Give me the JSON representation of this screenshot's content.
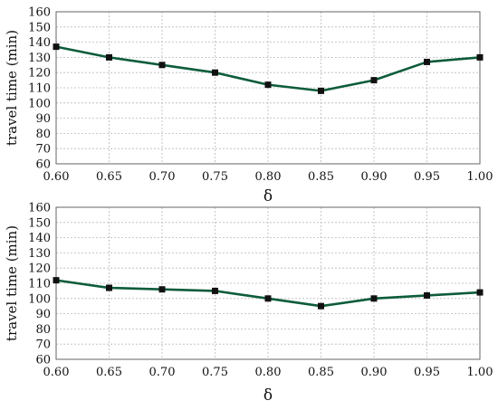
{
  "chart_data": [
    {
      "type": "line",
      "xlabel": "δ",
      "ylabel": "travel time (min)",
      "x": [
        "0.60",
        "0.65",
        "0.70",
        "0.75",
        "0.80",
        "0.85",
        "0.90",
        "0.95",
        "1.00"
      ],
      "yticks": [
        "60",
        "70",
        "80",
        "90",
        "100",
        "110",
        "120",
        "130",
        "140",
        "150",
        "160"
      ],
      "ylim": [
        60,
        160
      ],
      "grid": true,
      "series": [
        {
          "values": [
            137,
            130,
            125,
            120,
            112,
            108,
            115,
            127,
            130
          ],
          "color": "#0d5c3a"
        }
      ]
    },
    {
      "type": "line",
      "xlabel": "δ",
      "ylabel": "travel time (min)",
      "x": [
        "0.60",
        "0.65",
        "0.70",
        "0.75",
        "0.80",
        "0.85",
        "0.90",
        "0.95",
        "1.00"
      ],
      "yticks": [
        "60",
        "70",
        "80",
        "90",
        "100",
        "110",
        "120",
        "130",
        "140",
        "150",
        "160"
      ],
      "ylim": [
        60,
        160
      ],
      "grid": true,
      "series": [
        {
          "values": [
            112,
            107,
            106,
            105,
            100,
            95,
            100,
            102,
            104
          ],
          "color": "#0d5c3a"
        }
      ]
    }
  ]
}
